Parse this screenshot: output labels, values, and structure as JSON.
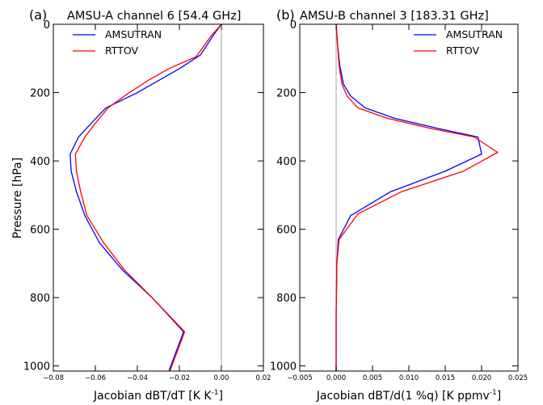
{
  "figure": {
    "ylabel": "Pressure [hPa]"
  },
  "chart_data": [
    {
      "type": "line",
      "panel_letter": "(a)",
      "title": "AMSU-A channel 6 [54.4 GHz]",
      "xlabel": "Jacobian dBT/dT [K K",
      "xlabel_sup": "-1",
      "xlabel_suffix": "]",
      "ylabel": "Pressure [hPa]",
      "xlim": [
        -0.08,
        0.02
      ],
      "ylim": [
        1015,
        0
      ],
      "xticks": [
        -0.08,
        -0.06,
        -0.04,
        -0.02,
        0.0,
        0.02
      ],
      "xtick_labels": [
        "−0.08",
        "−0.06",
        "−0.04",
        "−0.02",
        "0.00",
        "0.02"
      ],
      "yticks": [
        0,
        200,
        400,
        600,
        800,
        1000
      ],
      "ytick_labels": [
        "0",
        "200",
        "400",
        "600",
        "800",
        "1000"
      ],
      "zero_line": 0,
      "legend": "top-left",
      "grid": false,
      "series": [
        {
          "name": "AMSUTRAN",
          "color": "#0000ff",
          "x": [
            0.0,
            -0.003,
            -0.01,
            -0.02,
            -0.03,
            -0.04,
            -0.055,
            -0.062,
            -0.068,
            -0.072,
            -0.0715,
            -0.069,
            -0.065,
            -0.058,
            -0.047,
            -0.033,
            -0.018,
            -0.025
          ],
          "y": [
            0,
            25,
            90,
            130,
            165,
            200,
            245,
            290,
            330,
            380,
            430,
            490,
            560,
            640,
            720,
            800,
            900,
            1015
          ]
        },
        {
          "name": "RTTOV",
          "color": "#ff0000",
          "x": [
            0.0,
            -0.005,
            -0.012,
            -0.025,
            -0.035,
            -0.045,
            -0.054,
            -0.06,
            -0.065,
            -0.0695,
            -0.069,
            -0.067,
            -0.064,
            -0.056,
            -0.046,
            -0.033,
            -0.0175,
            -0.0245
          ],
          "y": [
            0,
            35,
            95,
            130,
            165,
            205,
            245,
            290,
            330,
            380,
            430,
            490,
            560,
            640,
            720,
            800,
            900,
            1015
          ]
        }
      ]
    },
    {
      "type": "line",
      "panel_letter": "(b)",
      "title": "AMSU-B channel 3 [183.31 GHz]",
      "xlabel": "Jacobian dBT/d(1 %q) [K ppmv",
      "xlabel_sup": "-1",
      "xlabel_suffix": "]",
      "xlim": [
        -0.005,
        0.025
      ],
      "ylim": [
        1015,
        0
      ],
      "xticks": [
        -0.005,
        0.0,
        0.005,
        0.01,
        0.015,
        0.02,
        0.025
      ],
      "xtick_labels": [
        "−0.005",
        "0.000",
        "0.005",
        "0.010",
        "0.015",
        "0.020",
        "0.025"
      ],
      "yticks": [
        0,
        200,
        400,
        600,
        800,
        1000
      ],
      "ytick_labels": [
        "0",
        "200",
        "400",
        "600",
        "800",
        "1000"
      ],
      "zero_line": 0,
      "legend": "top-right",
      "grid": false,
      "series": [
        {
          "name": "AMSUTRAN",
          "color": "#0000ff",
          "x": [
            0.0,
            0.0002,
            0.0005,
            0.001,
            0.002,
            0.004,
            0.008,
            0.014,
            0.0195,
            0.02,
            0.015,
            0.0075,
            0.002,
            0.0003,
            0.0001,
            0.0,
            0.0
          ],
          "y": [
            0,
            60,
            120,
            175,
            210,
            245,
            275,
            305,
            330,
            380,
            430,
            490,
            560,
            630,
            700,
            850,
            1015
          ]
        },
        {
          "name": "RTTOV",
          "color": "#ff0000",
          "x": [
            0.0,
            0.0002,
            0.0004,
            0.0008,
            0.0015,
            0.003,
            0.007,
            0.013,
            0.019,
            0.0222,
            0.0175,
            0.009,
            0.003,
            0.0004,
            0.0001,
            0.0,
            0.0
          ],
          "y": [
            0,
            60,
            120,
            175,
            210,
            245,
            275,
            305,
            330,
            375,
            430,
            490,
            555,
            630,
            700,
            850,
            1015
          ]
        }
      ]
    }
  ]
}
